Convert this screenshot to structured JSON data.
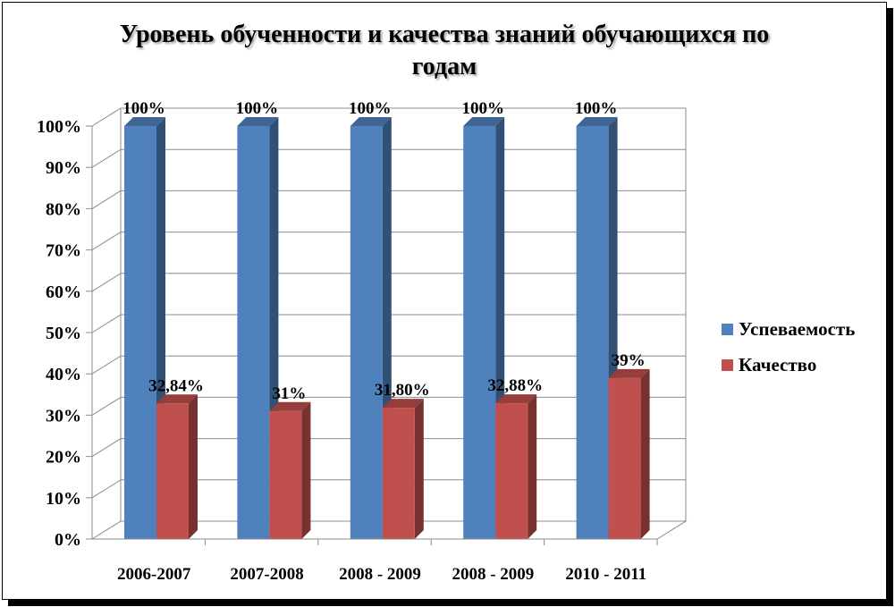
{
  "chart_data": {
    "type": "bar",
    "title": "Уровень обученности и качества знаний обучающихся по годам",
    "title_lines": [
      "Уровень обученности и качества знаний обучающихся по",
      "годам"
    ],
    "categories": [
      "2006-2007",
      "2007-2008",
      "2008 - 2009",
      "2008 - 2009",
      "2010 - 2011"
    ],
    "series": [
      {
        "name": "Успеваемость",
        "color": "#4F81BD",
        "values": [
          100,
          100,
          100,
          100,
          100
        ],
        "labels": [
          "100%",
          "100%",
          "100%",
          "100%",
          "100%"
        ]
      },
      {
        "name": "Качество",
        "color": "#C0504D",
        "values": [
          32.84,
          31,
          31.8,
          32.88,
          39
        ],
        "labels": [
          "32,84%",
          "31%",
          "31,80%",
          "32,88%",
          "39%"
        ]
      }
    ],
    "ylim": [
      0,
      100
    ],
    "yticks": [
      "0%",
      "10%",
      "20%",
      "30%",
      "40%",
      "50%",
      "60%",
      "70%",
      "80%",
      "90%",
      "100%"
    ],
    "grid": true,
    "legend": "right",
    "style": "3d-column"
  }
}
